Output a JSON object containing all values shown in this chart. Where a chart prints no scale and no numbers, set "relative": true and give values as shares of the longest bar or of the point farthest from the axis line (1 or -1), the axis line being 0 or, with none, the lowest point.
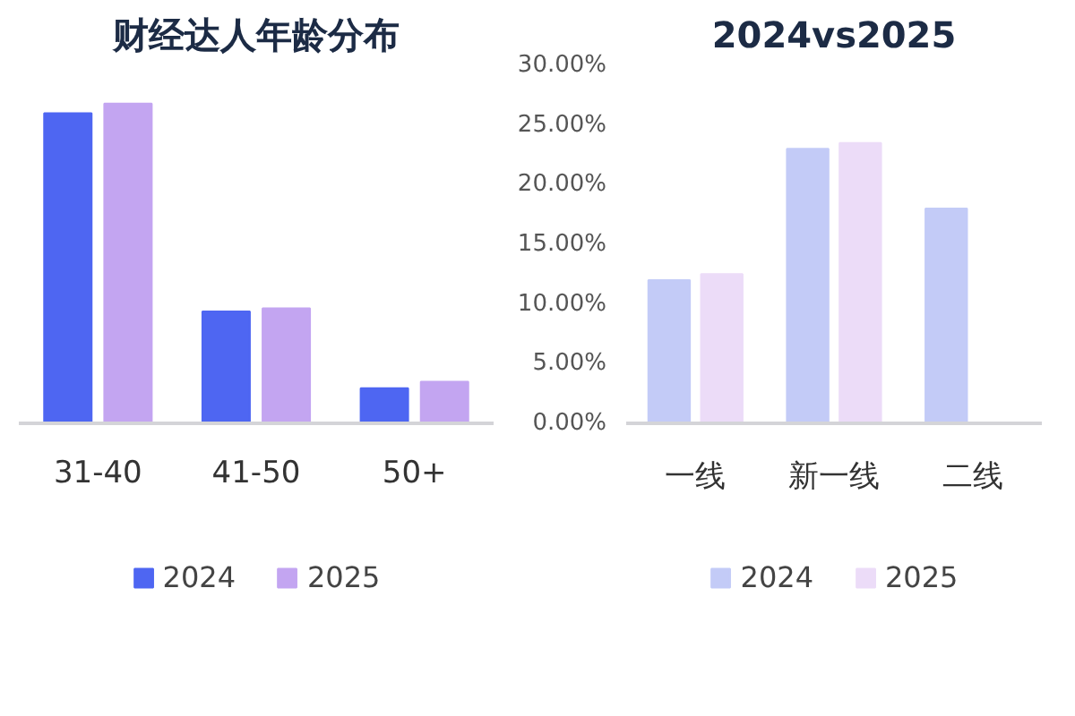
{
  "chart_data": [
    {
      "type": "bar",
      "title": "财经达人年龄分布",
      "categories": [
        "31-40",
        "41-50",
        "50+"
      ],
      "relative": true,
      "series": [
        {
          "name": "2024",
          "color": "#4e66f2",
          "values": [
            0.97,
            0.35,
            0.11
          ]
        },
        {
          "name": "2025",
          "color": "#c3a5f1",
          "values": [
            1,
            0.36,
            0.13
          ]
        }
      ],
      "legend": "bottom"
    },
    {
      "type": "bar",
      "title": "2024vs2025",
      "categories": [
        "一线",
        "新一线",
        "二线"
      ],
      "series": [
        {
          "name": "2024",
          "color": "#c3cbf7",
          "values": [
            12,
            23,
            18
          ]
        },
        {
          "name": "2025",
          "color": "#ecdcf8",
          "values": [
            12.5,
            23.5,
            null
          ]
        }
      ],
      "ylim": [
        0,
        30
      ],
      "yticks": [
        {
          "value": 0,
          "label": "0.00%"
        },
        {
          "value": 5,
          "label": "5.00%"
        },
        {
          "value": 10,
          "label": "10.00%"
        },
        {
          "value": 15,
          "label": "15.00%"
        },
        {
          "value": 20,
          "label": "20.00%"
        },
        {
          "value": 25,
          "label": "25.00%"
        },
        {
          "value": 30,
          "label": "30.00%"
        }
      ],
      "legend": "bottom"
    }
  ]
}
